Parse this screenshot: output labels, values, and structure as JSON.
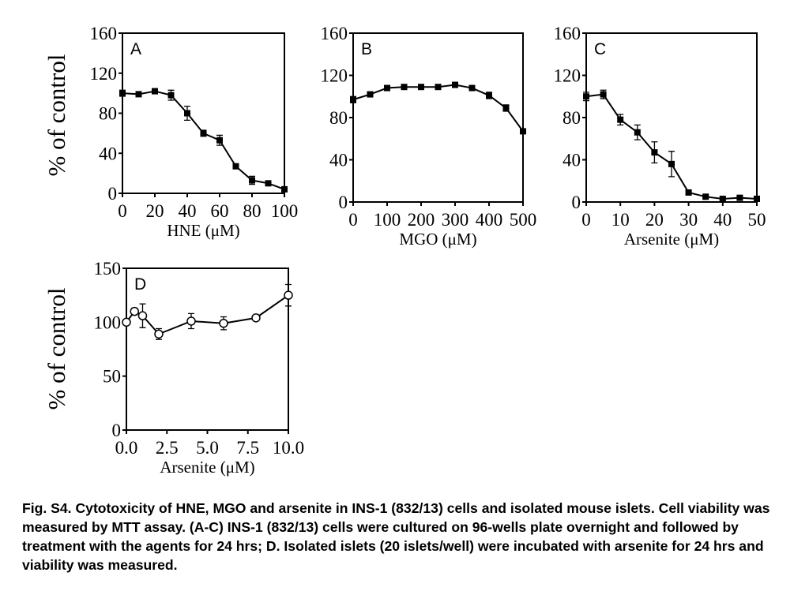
{
  "chart_data": [
    {
      "type": "line",
      "panel": "A",
      "ylabel": "% of control",
      "xlabel": "HNE (μM)",
      "xlim": [
        0,
        100
      ],
      "ylim": [
        0,
        160
      ],
      "xticks": [
        0,
        20,
        40,
        60,
        80,
        100
      ],
      "yticks": [
        0,
        40,
        80,
        120,
        160
      ],
      "marker": "square-filled",
      "x": [
        0,
        10,
        20,
        30,
        40,
        50,
        60,
        70,
        80,
        90,
        100
      ],
      "y": [
        100,
        99,
        102,
        98,
        80,
        60,
        53,
        27,
        13,
        10,
        4
      ],
      "err": [
        3,
        1.5,
        2,
        5,
        7,
        3,
        5,
        2,
        4,
        1.5,
        2
      ]
    },
    {
      "type": "line",
      "panel": "B",
      "xlabel": "MGO (μM)",
      "xlim": [
        0,
        500
      ],
      "ylim": [
        0,
        160
      ],
      "xticks": [
        0,
        100,
        200,
        300,
        400,
        500
      ],
      "yticks": [
        0,
        40,
        80,
        120,
        160
      ],
      "marker": "square-filled",
      "x": [
        0,
        50,
        100,
        150,
        200,
        250,
        300,
        350,
        400,
        450,
        500
      ],
      "y": [
        97,
        102,
        108,
        109,
        109,
        109,
        111,
        108,
        101,
        89,
        67
      ],
      "err": [
        3,
        1.5,
        1.5,
        1.5,
        1,
        1,
        1.5,
        1.5,
        3,
        3,
        2
      ]
    },
    {
      "type": "line",
      "panel": "C",
      "xlabel": "Arsenite (μM)",
      "xlim": [
        0,
        50
      ],
      "ylim": [
        0,
        160
      ],
      "xticks": [
        0,
        10,
        20,
        30,
        40,
        50
      ],
      "yticks": [
        0,
        40,
        80,
        120,
        160
      ],
      "marker": "square-filled",
      "x": [
        0,
        5,
        10,
        15,
        20,
        25,
        30,
        35,
        40,
        45,
        50
      ],
      "y": [
        100,
        102,
        78,
        66,
        47,
        36,
        9,
        5,
        3,
        4,
        3
      ],
      "err": [
        4,
        4,
        5,
        7,
        10,
        12,
        2,
        1.5,
        1.5,
        1.5,
        1.5
      ]
    },
    {
      "type": "line",
      "panel": "D",
      "ylabel": "% of control",
      "xlabel": "Arsenite (μM)",
      "xlim": [
        0,
        10
      ],
      "ylim": [
        0,
        150
      ],
      "xticks": [
        0,
        2.5,
        5.0,
        7.5,
        10.0
      ],
      "xtick_labels": [
        "0.0",
        "2.5",
        "5.0",
        "7.5",
        "10.0"
      ],
      "yticks": [
        0,
        50,
        100,
        150
      ],
      "marker": "circle-open",
      "x": [
        0,
        0.5,
        1,
        2,
        4,
        6,
        8,
        10
      ],
      "y": [
        100,
        110,
        106,
        89,
        101,
        99,
        104,
        125
      ],
      "err": [
        2,
        3,
        11,
        5,
        7,
        6,
        2,
        10
      ]
    }
  ],
  "caption": "Fig. S4. Cytotoxicity of HNE, MGO and arsenite in INS-1 (832/13) cells and isolated mouse islets. Cell viability was measured by MTT assay. (A-C) INS-1 (832/13) cells were cultured on 96-wells plate overnight and followed by treatment with the agents for 24 hrs; D. Isolated islets (20 islets/well) were incubated with arsenite for 24 hrs and viability was measured."
}
